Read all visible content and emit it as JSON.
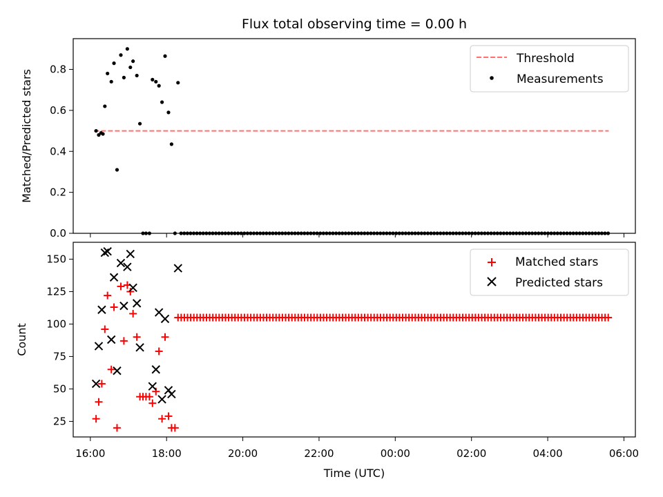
{
  "figure": {
    "title": "Flux total observing time = 0.00 h",
    "xlabel": "Time (UTC)",
    "x_ticks": [
      "16:00",
      "18:00",
      "20:00",
      "22:00",
      "00:00",
      "02:00",
      "04:00",
      "06:00"
    ]
  },
  "chart_data": [
    {
      "type": "scatter",
      "ylabel": "Matched/Predicted stars",
      "xlim_hours": [
        15.55,
        30.3
      ],
      "ylim": [
        0,
        0.95
      ],
      "y_ticks": [
        0.0,
        0.2,
        0.4,
        0.6,
        0.8
      ],
      "x_unit": "hours since 00:00 UTC of the first night",
      "threshold": {
        "name": "Threshold",
        "value": 0.5,
        "x_range": [
          16.1,
          29.6
        ],
        "color": "#ff7070"
      },
      "series": [
        {
          "name": "Measurements",
          "color": "#000000",
          "marker": "dot",
          "points": [
            [
              16.15,
              0.5
            ],
            [
              16.22,
              0.48
            ],
            [
              16.28,
              0.49
            ],
            [
              16.33,
              0.485
            ],
            [
              16.38,
              0.62
            ],
            [
              16.45,
              0.78
            ],
            [
              16.55,
              0.74
            ],
            [
              16.62,
              0.83
            ],
            [
              16.7,
              0.31
            ],
            [
              16.8,
              0.87
            ],
            [
              16.88,
              0.76
            ],
            [
              16.97,
              0.9
            ],
            [
              17.05,
              0.81
            ],
            [
              17.12,
              0.84
            ],
            [
              17.22,
              0.77
            ],
            [
              17.3,
              0.535
            ],
            [
              17.38,
              0.0
            ],
            [
              17.46,
              0.0
            ],
            [
              17.55,
              0.0
            ],
            [
              17.63,
              0.75
            ],
            [
              17.72,
              0.74
            ],
            [
              17.8,
              0.72
            ],
            [
              17.88,
              0.64
            ],
            [
              17.96,
              0.865
            ],
            [
              18.05,
              0.59
            ],
            [
              18.13,
              0.435
            ],
            [
              18.22,
              0.0
            ],
            [
              18.3,
              0.735
            ]
          ],
          "zero_run": {
            "from": 18.38,
            "to": 29.6,
            "step": 0.083,
            "y": 0.0
          }
        }
      ]
    },
    {
      "type": "scatter",
      "ylabel": "Count",
      "xlim_hours": [
        15.55,
        30.3
      ],
      "ylim": [
        13,
        163
      ],
      "y_ticks": [
        25,
        50,
        75,
        100,
        125,
        150
      ],
      "series": [
        {
          "name": "Matched stars",
          "color": "#ff0000",
          "marker": "plus",
          "points": [
            [
              16.15,
              27
            ],
            [
              16.22,
              40
            ],
            [
              16.3,
              54
            ],
            [
              16.38,
              96
            ],
            [
              16.45,
              122
            ],
            [
              16.55,
              65
            ],
            [
              16.62,
              113
            ],
            [
              16.7,
              20
            ],
            [
              16.8,
              129
            ],
            [
              16.88,
              87
            ],
            [
              16.97,
              130
            ],
            [
              17.05,
              125
            ],
            [
              17.12,
              108
            ],
            [
              17.22,
              90
            ],
            [
              17.3,
              44
            ],
            [
              17.38,
              44
            ],
            [
              17.46,
              44
            ],
            [
              17.55,
              44
            ],
            [
              17.63,
              39
            ],
            [
              17.72,
              48
            ],
            [
              17.8,
              79
            ],
            [
              17.88,
              27
            ],
            [
              17.96,
              90
            ],
            [
              18.05,
              29
            ],
            [
              18.13,
              20
            ],
            [
              18.22,
              20
            ]
          ],
          "flat_run": {
            "from": 18.3,
            "to": 29.6,
            "step": 0.083,
            "y": 105
          }
        },
        {
          "name": "Predicted stars",
          "color": "#000000",
          "marker": "x",
          "points": [
            [
              16.15,
              54
            ],
            [
              16.22,
              83
            ],
            [
              16.3,
              111
            ],
            [
              16.38,
              155
            ],
            [
              16.45,
              156
            ],
            [
              16.55,
              88
            ],
            [
              16.62,
              136
            ],
            [
              16.7,
              64
            ],
            [
              16.8,
              147
            ],
            [
              16.88,
              114
            ],
            [
              16.97,
              144
            ],
            [
              17.05,
              154
            ],
            [
              17.12,
              128
            ],
            [
              17.22,
              116
            ],
            [
              17.3,
              82
            ],
            [
              17.63,
              52
            ],
            [
              17.72,
              65
            ],
            [
              17.8,
              109
            ],
            [
              17.88,
              42
            ],
            [
              17.96,
              104
            ],
            [
              18.05,
              49
            ],
            [
              18.13,
              46
            ],
            [
              18.3,
              143
            ]
          ]
        }
      ]
    }
  ]
}
